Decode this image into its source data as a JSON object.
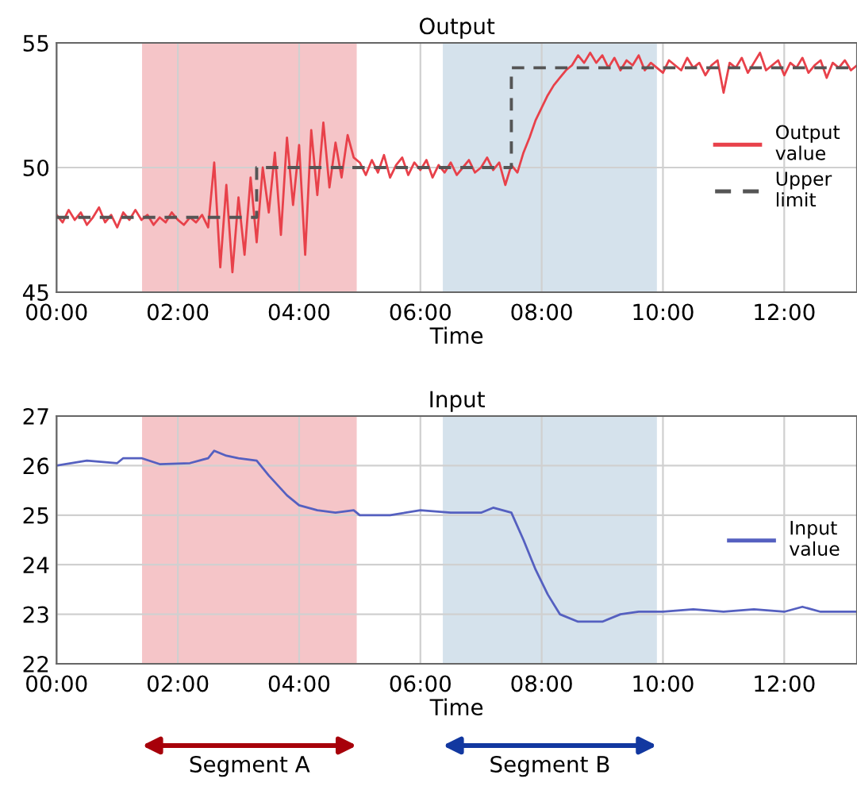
{
  "chart_data": [
    {
      "type": "line",
      "title": "Output",
      "xlabel": "Time",
      "xlim": [
        0,
        13.2
      ],
      "xticks": [
        {
          "value": 0,
          "label": "00:00"
        },
        {
          "value": 2,
          "label": "02:00"
        },
        {
          "value": 4,
          "label": "04:00"
        },
        {
          "value": 6,
          "label": "06:00"
        },
        {
          "value": 8,
          "label": "08:00"
        },
        {
          "value": 10,
          "label": "10:00"
        },
        {
          "value": 12,
          "label": "12:00"
        }
      ],
      "ylim": [
        45,
        55
      ],
      "yticks": [
        45,
        50,
        55
      ],
      "grid": true,
      "legend": "right",
      "bands": [
        {
          "axis": "x",
          "from": 1.41,
          "to": 4.95,
          "color": "#f5c5c8"
        },
        {
          "axis": "x",
          "from": 6.37,
          "to": 9.9,
          "color": "#d5e2ec"
        }
      ],
      "series": [
        {
          "name": "Output value",
          "color": "#e8414a",
          "line_style": "solid",
          "x": [
            0.0,
            0.1,
            0.2,
            0.3,
            0.4,
            0.5,
            0.6,
            0.7,
            0.8,
            0.9,
            1.0,
            1.1,
            1.2,
            1.3,
            1.4,
            1.5,
            1.6,
            1.7,
            1.8,
            1.9,
            2.0,
            2.1,
            2.2,
            2.3,
            2.4,
            2.5,
            2.6,
            2.7,
            2.8,
            2.9,
            3.0,
            3.1,
            3.2,
            3.3,
            3.4,
            3.5,
            3.6,
            3.7,
            3.8,
            3.9,
            4.0,
            4.1,
            4.2,
            4.3,
            4.4,
            4.5,
            4.6,
            4.7,
            4.8,
            4.9,
            5.0,
            5.1,
            5.2,
            5.3,
            5.4,
            5.5,
            5.6,
            5.7,
            5.8,
            5.9,
            6.0,
            6.1,
            6.2,
            6.3,
            6.4,
            6.5,
            6.6,
            6.7,
            6.8,
            6.9,
            7.0,
            7.1,
            7.2,
            7.3,
            7.4,
            7.5,
            7.6,
            7.7,
            7.8,
            7.9,
            8.0,
            8.1,
            8.2,
            8.3,
            8.4,
            8.5,
            8.6,
            8.7,
            8.8,
            8.9,
            9.0,
            9.1,
            9.2,
            9.3,
            9.4,
            9.5,
            9.6,
            9.7,
            9.8,
            9.9,
            10.0,
            10.1,
            10.2,
            10.3,
            10.4,
            10.5,
            10.6,
            10.7,
            10.8,
            10.9,
            11.0,
            11.1,
            11.2,
            11.3,
            11.4,
            11.5,
            11.6,
            11.7,
            11.8,
            11.9,
            12.0,
            12.1,
            12.2,
            12.3,
            12.4,
            12.5,
            12.6,
            12.7,
            12.8,
            12.9,
            13.0,
            13.1,
            13.2
          ],
          "values": [
            48.1,
            47.8,
            48.3,
            47.9,
            48.2,
            47.7,
            48.0,
            48.4,
            47.8,
            48.1,
            47.6,
            48.2,
            47.9,
            48.3,
            47.9,
            48.1,
            47.7,
            48.0,
            47.8,
            48.2,
            47.9,
            47.7,
            48.0,
            47.8,
            48.1,
            47.6,
            50.2,
            46.0,
            49.3,
            45.8,
            48.8,
            46.5,
            49.6,
            47.0,
            50.0,
            48.2,
            50.6,
            47.3,
            51.2,
            48.5,
            50.9,
            46.5,
            51.5,
            48.9,
            51.8,
            49.2,
            51.0,
            49.6,
            51.3,
            50.4,
            50.2,
            49.7,
            50.3,
            49.8,
            50.5,
            49.6,
            50.1,
            50.4,
            49.7,
            50.2,
            49.9,
            50.3,
            49.6,
            50.1,
            49.8,
            50.2,
            49.7,
            50.0,
            50.3,
            49.8,
            50.0,
            50.4,
            49.9,
            50.2,
            49.3,
            50.1,
            49.8,
            50.6,
            51.2,
            51.9,
            52.4,
            52.9,
            53.3,
            53.6,
            53.9,
            54.1,
            54.5,
            54.2,
            54.6,
            54.2,
            54.5,
            54.0,
            54.4,
            53.9,
            54.3,
            54.1,
            54.5,
            53.9,
            54.2,
            54.0,
            53.8,
            54.3,
            54.1,
            53.9,
            54.4,
            54.0,
            54.2,
            53.7,
            54.1,
            54.3,
            53.0,
            54.2,
            54.0,
            54.4,
            53.8,
            54.2,
            54.6,
            53.9,
            54.1,
            54.3,
            53.7,
            54.2,
            54.0,
            54.4,
            53.8,
            54.1,
            54.3,
            53.6,
            54.2,
            54.0,
            54.3,
            53.9,
            54.1
          ]
        },
        {
          "name": "Upper limit",
          "type": "step",
          "color": "#555555",
          "line_style": "dashed",
          "x": [
            0,
            3.3,
            7.5,
            13.2
          ],
          "values": [
            48,
            50,
            54,
            54
          ]
        }
      ]
    },
    {
      "type": "line",
      "title": "Input",
      "xlabel": "Time",
      "xlim": [
        0,
        13.2
      ],
      "xticks": [
        {
          "value": 0,
          "label": "00:00"
        },
        {
          "value": 2,
          "label": "02:00"
        },
        {
          "value": 4,
          "label": "04:00"
        },
        {
          "value": 6,
          "label": "06:00"
        },
        {
          "value": 8,
          "label": "08:00"
        },
        {
          "value": 10,
          "label": "10:00"
        },
        {
          "value": 12,
          "label": "12:00"
        }
      ],
      "ylim": [
        22,
        27
      ],
      "yticks": [
        22,
        23,
        24,
        25,
        26,
        27
      ],
      "grid": true,
      "legend": "right",
      "bands": [
        {
          "axis": "x",
          "from": 1.41,
          "to": 4.95,
          "color": "#f5c5c8"
        },
        {
          "axis": "x",
          "from": 6.37,
          "to": 9.9,
          "color": "#d5e2ec"
        }
      ],
      "annotations": [
        "Segment A",
        "Segment B"
      ],
      "series": [
        {
          "name": "Input value",
          "color": "#5560c0",
          "line_style": "solid",
          "x": [
            0,
            0.5,
            1.0,
            1.1,
            1.4,
            1.7,
            2.2,
            2.5,
            2.6,
            2.8,
            3.0,
            3.3,
            3.5,
            3.8,
            4.0,
            4.3,
            4.6,
            4.9,
            5.0,
            5.5,
            6.0,
            6.5,
            7.0,
            7.2,
            7.5,
            7.7,
            7.9,
            8.1,
            8.3,
            8.6,
            9.0,
            9.3,
            9.6,
            10.0,
            10.5,
            11.0,
            11.5,
            12.0,
            12.3,
            12.6,
            13.2
          ],
          "values": [
            26.0,
            26.1,
            26.05,
            26.15,
            26.15,
            26.03,
            26.05,
            26.15,
            26.3,
            26.2,
            26.15,
            26.1,
            25.8,
            25.4,
            25.2,
            25.1,
            25.05,
            25.1,
            25.0,
            25.0,
            25.1,
            25.05,
            25.05,
            25.15,
            25.05,
            24.5,
            23.9,
            23.4,
            23.0,
            22.85,
            22.85,
            23.0,
            23.05,
            23.05,
            23.1,
            23.05,
            23.1,
            23.05,
            23.15,
            23.05,
            23.05
          ]
        }
      ]
    }
  ]
}
